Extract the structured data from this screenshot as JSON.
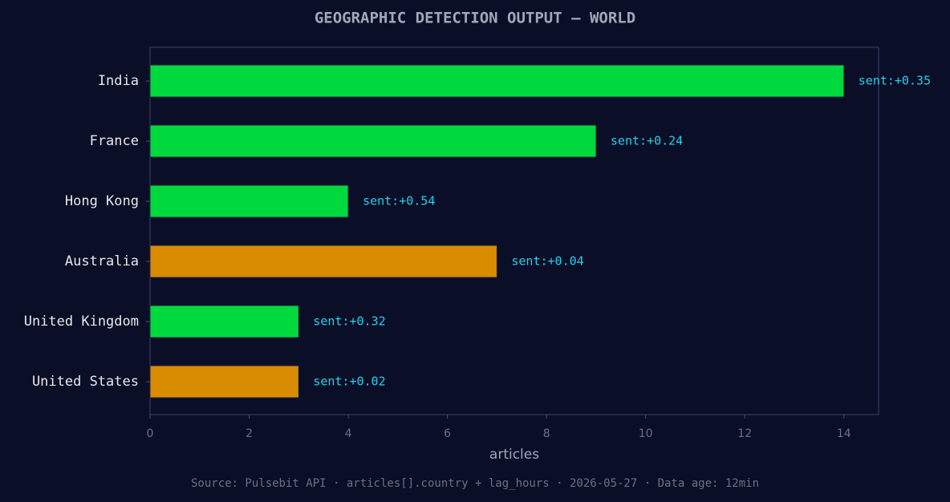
{
  "chart_data": {
    "type": "barh",
    "title": "GEOGRAPHIC DETECTION OUTPUT — WORLD",
    "xlabel": "articles",
    "footer": "Source: Pulsebit API · articles[].country + lag_hours · 2026-05-27 · Data age: 12min",
    "categories": [
      "India",
      "France",
      "Hong Kong",
      "Australia",
      "United Kingdom",
      "United States"
    ],
    "values": [
      14,
      9,
      4,
      7,
      3,
      3
    ],
    "colors": [
      "#00d93d",
      "#00d93d",
      "#00d93d",
      "#d98c00",
      "#00d93d",
      "#d98c00"
    ],
    "annotations": [
      "sent:+0.35",
      "sent:+0.24",
      "sent:+0.54",
      "sent:+0.04",
      "sent:+0.32",
      "sent:+0.02"
    ],
    "xlim": [
      0,
      14.7
    ],
    "xticks": [
      0,
      2,
      4,
      6,
      8,
      10,
      12,
      14
    ]
  }
}
